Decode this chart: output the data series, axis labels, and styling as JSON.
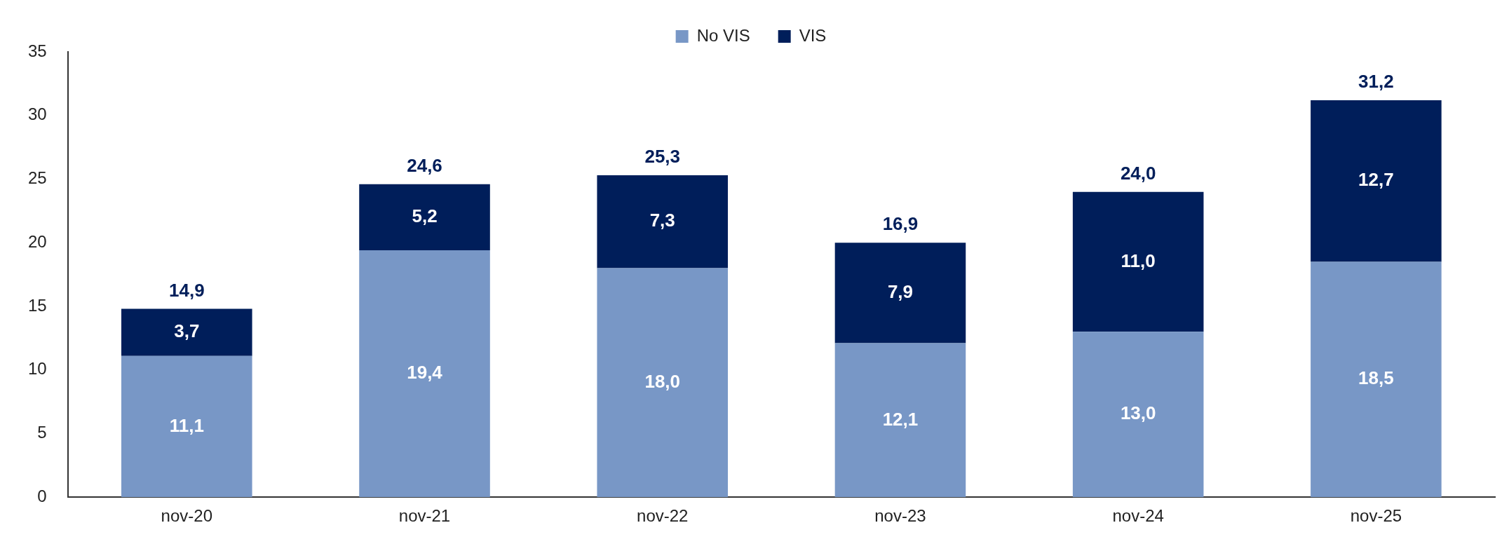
{
  "chart_data": {
    "type": "bar",
    "stacked": true,
    "categories": [
      "nov-20",
      "nov-21",
      "nov-22",
      "nov-23",
      "nov-24",
      "nov-25"
    ],
    "series": [
      {
        "name": "No VIS",
        "color": "#7897c6",
        "values": [
          11.1,
          19.4,
          18.0,
          12.1,
          13.0,
          18.5
        ],
        "value_labels": [
          "11,1",
          "19,4",
          "18,0",
          "12,1",
          "13,0",
          "18,5"
        ]
      },
      {
        "name": "VIS",
        "color": "#001e5a",
        "values": [
          3.7,
          5.2,
          7.3,
          7.9,
          11.0,
          12.7
        ],
        "value_labels": [
          "3,7",
          "5,2",
          "7,3",
          "7,9",
          "11,0",
          "12,7"
        ]
      }
    ],
    "totals": [
      "14,9",
      "24,6",
      "25,3",
      null,
      "24,0",
      "31,2"
    ],
    "annotations": [
      {
        "text": "16,9",
        "x": "nov-23",
        "y": 20
      }
    ],
    "ylim": [
      0,
      35
    ],
    "yticks": [
      0,
      5,
      10,
      15,
      20,
      25,
      30,
      35
    ],
    "grid": false,
    "legend": "top"
  }
}
